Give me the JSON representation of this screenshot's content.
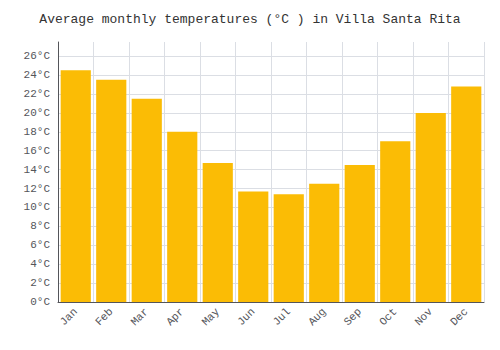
{
  "chart_data": {
    "type": "bar",
    "title": "Average monthly temperatures (°C ) in Villa Santa Rita",
    "categories": [
      "Jan",
      "Feb",
      "Mar",
      "Apr",
      "May",
      "Jun",
      "Jul",
      "Aug",
      "Sep",
      "Oct",
      "Nov",
      "Dec"
    ],
    "values": [
      24.5,
      23.5,
      21.5,
      18.0,
      14.7,
      11.7,
      11.4,
      12.5,
      14.5,
      17.0,
      20.0,
      22.8
    ],
    "color": "#FBBC05",
    "ylim": [
      0,
      27.5
    ],
    "yticks": [
      {
        "value": 0,
        "label": "0°C"
      },
      {
        "value": 2,
        "label": "2°C"
      },
      {
        "value": 4,
        "label": "4°C"
      },
      {
        "value": 6,
        "label": "6°C"
      },
      {
        "value": 8,
        "label": "8°C"
      },
      {
        "value": 10,
        "label": "10°C"
      },
      {
        "value": 12,
        "label": "12°C"
      },
      {
        "value": 14,
        "label": "14°C"
      },
      {
        "value": 16,
        "label": "16°C"
      },
      {
        "value": 18,
        "label": "18°C"
      },
      {
        "value": 20,
        "label": "20°C"
      },
      {
        "value": 22,
        "label": "22°C"
      },
      {
        "value": 24,
        "label": "24°C"
      },
      {
        "value": 26,
        "label": "26°C"
      }
    ],
    "grid": true
  }
}
